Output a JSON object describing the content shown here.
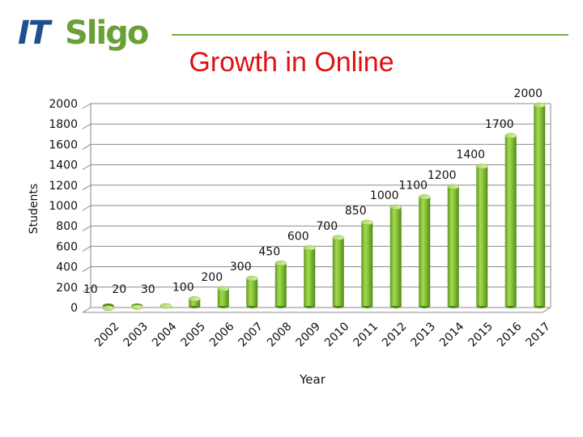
{
  "header": {
    "logo_part1": "IT",
    "logo_part2": "Sligo",
    "title": "Growth in Online"
  },
  "colors": {
    "bar": "#7dbb2e",
    "bar_light": "#b8e06a",
    "bar_dark": "#4f8a14",
    "title": "#e01010",
    "logo_blue": "#1f4f8e",
    "logo_green": "#6aa137"
  },
  "chart_data": {
    "type": "bar",
    "title": "Growth in Online",
    "xlabel": "Year",
    "ylabel": "Students",
    "ylim": [
      0,
      2000
    ],
    "yticks": [
      0,
      200,
      400,
      600,
      800,
      1000,
      1200,
      1400,
      1600,
      1800,
      2000
    ],
    "grid": true,
    "categories": [
      "2002",
      "2003",
      "2004",
      "2005",
      "2006",
      "2007",
      "2008",
      "2009",
      "2010",
      "2011",
      "2012",
      "2013",
      "2014",
      "2015",
      "2016",
      "2017"
    ],
    "values": [
      10,
      20,
      30,
      100,
      200,
      300,
      450,
      600,
      700,
      850,
      1000,
      1100,
      1200,
      1400,
      1700,
      2000
    ]
  }
}
